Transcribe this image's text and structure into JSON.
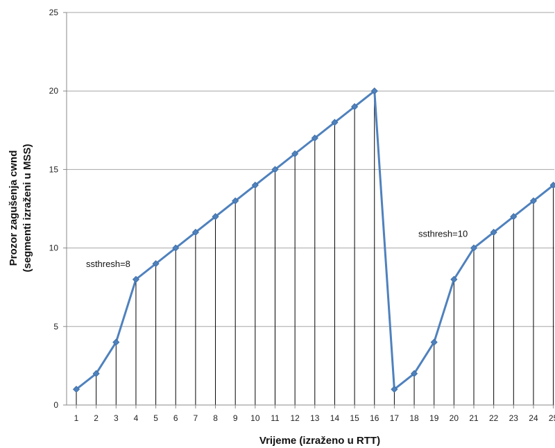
{
  "chart_data": {
    "type": "line",
    "xlabel": "Vrijeme (izraženo u RTT)",
    "ylabel_line1": "Prozor zagušenja cwnd",
    "ylabel_line2": "(segmenti izraženi u MSS)",
    "x": [
      1,
      2,
      3,
      4,
      5,
      6,
      7,
      8,
      9,
      10,
      11,
      12,
      13,
      14,
      15,
      16,
      17,
      18,
      19,
      20,
      21,
      22,
      23,
      24,
      25
    ],
    "values": [
      1,
      2,
      4,
      8,
      9,
      10,
      11,
      12,
      13,
      14,
      15,
      16,
      17,
      18,
      19,
      20,
      1,
      2,
      4,
      8,
      10,
      11,
      12,
      13,
      14
    ],
    "ylim": [
      0,
      25
    ],
    "yticks": [
      0,
      5,
      10,
      15,
      20,
      25
    ],
    "grid": true,
    "drop_lines": true,
    "colors": {
      "line": "#4f81bd",
      "marker": "#4f81bd",
      "grid": "#a6a6a6",
      "drop": "#000000"
    },
    "annotations": [
      {
        "text": "ssthresh=8",
        "x": 4,
        "y": 8
      },
      {
        "text": "ssthresh=10",
        "x": 21,
        "y": 10
      }
    ]
  }
}
